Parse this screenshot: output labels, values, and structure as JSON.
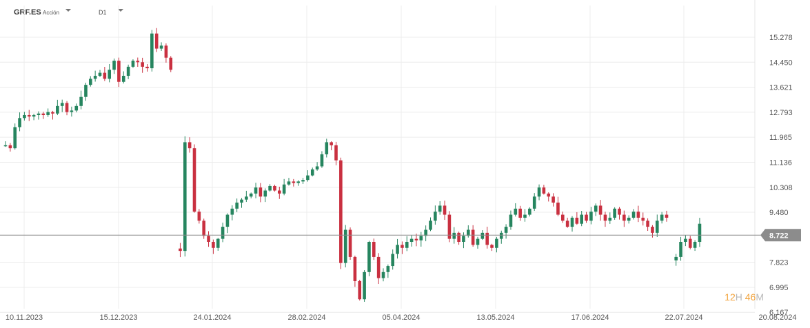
{
  "header": {
    "symbol": "GRF.ES",
    "asset_type": "Acción",
    "timeframe": "D1"
  },
  "countdown": {
    "hours": "12",
    "hours_unit": "H",
    "minutes": "46",
    "minutes_unit": "M"
  },
  "colors": {
    "up": "#26855f",
    "down": "#c93040",
    "grid": "#ececec",
    "current_line": "#8a8a8a",
    "price_tag": "#8c8c8c"
  },
  "chart_data": {
    "type": "candlestick",
    "title": "",
    "y_ticks": [
      "15.278",
      "14.450",
      "13.621",
      "12.793",
      "11.965",
      "11.136",
      "10.308",
      "9.480",
      "8.722",
      "7.823",
      "6.995",
      "6.167"
    ],
    "y_tick_values": [
      15.278,
      14.45,
      13.621,
      12.793,
      11.965,
      11.136,
      10.308,
      9.48,
      7.823,
      6.995,
      6.167
    ],
    "ylim": [
      6.167,
      15.9
    ],
    "x_ticks": [
      "10.11.2023",
      "15.12.2023",
      "24.01.2024",
      "28.02.2024",
      "05.04.2024",
      "13.05.2024",
      "17.06.2024",
      "22.07.2024",
      "20.08.2024"
    ],
    "current_price": "8.722",
    "current_price_value": 8.722,
    "grid": true,
    "close_path": [
      11.7,
      11.6,
      12.3,
      12.6,
      12.7,
      12.65,
      12.7,
      12.75,
      12.7,
      12.8,
      12.75,
      13.0,
      13.1,
      12.8,
      12.85,
      13.0,
      13.3,
      13.7,
      13.9,
      14.0,
      14.1,
      13.9,
      14.2,
      14.5,
      13.8,
      14.0,
      14.3,
      14.5,
      14.45,
      14.3,
      14.25,
      15.4,
      14.9,
      15.0,
      14.6,
      14.2,
      null,
      8.2,
      11.8,
      11.6,
      9.5,
      9.2,
      8.7,
      8.5,
      8.3,
      8.6,
      9.0,
      9.4,
      9.6,
      9.8,
      9.9,
      10.0,
      10.1,
      10.3,
      10.0,
      10.2,
      10.35,
      10.2,
      10.1,
      10.4,
      10.5,
      10.45,
      10.5,
      10.55,
      10.7,
      10.9,
      11.0,
      11.4,
      11.8,
      11.7,
      11.2,
      7.8,
      8.9,
      8.0,
      7.2,
      6.6,
      7.5,
      8.5,
      8.0,
      7.3,
      7.5,
      7.7,
      8.1,
      8.4,
      8.3,
      8.5,
      8.6,
      8.55,
      8.7,
      8.9,
      9.2,
      9.5,
      9.7,
      9.4,
      8.6,
      8.8,
      8.5,
      8.7,
      8.9,
      8.4,
      8.6,
      8.8,
      8.4,
      8.3,
      8.6,
      8.8,
      9.0,
      9.4,
      9.6,
      9.3,
      9.4,
      9.6,
      10.0,
      10.3,
      10.1,
      10.0,
      9.8,
      9.4,
      9.2,
      9.0,
      9.3,
      9.1,
      9.4,
      9.2,
      9.5,
      9.7,
      9.4,
      9.2,
      9.3,
      9.6,
      9.4,
      9.2,
      9.3,
      9.5,
      9.3,
      9.2,
      9.0,
      8.8,
      9.2,
      9.4,
      9.3,
      null,
      8.0,
      8.5,
      8.6,
      8.3,
      8.5,
      9.1,
      null,
      9.8,
      10.4,
      10.2,
      9.6,
      9.4,
      9.3,
      9.0,
      9.2,
      9.1,
      9.3,
      9.2,
      8.9,
      9.1,
      9.3,
      9.2,
      9.4,
      9.1,
      8.9,
      8.6,
      8.8
    ]
  }
}
